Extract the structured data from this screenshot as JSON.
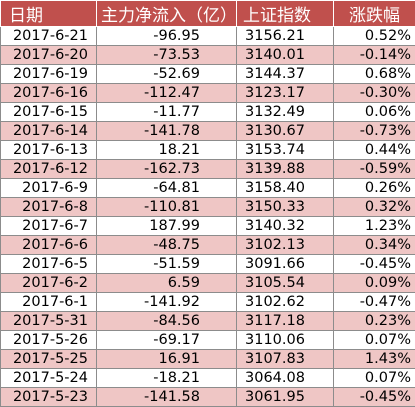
{
  "headers": {
    "date": "日期",
    "flow": "主力净流入（亿）",
    "index": "上证指数",
    "change": "涨跌幅"
  },
  "rows": [
    {
      "date": "2017-6-21",
      "flow": "-96.95",
      "index": "3156.21",
      "change": "0.52%"
    },
    {
      "date": "2017-6-20",
      "flow": "-73.53",
      "index": "3140.01",
      "change": "-0.14%"
    },
    {
      "date": "2017-6-19",
      "flow": "-52.69",
      "index": "3144.37",
      "change": "0.68%"
    },
    {
      "date": "2017-6-16",
      "flow": "-112.47",
      "index": "3123.17",
      "change": "-0.30%"
    },
    {
      "date": "2017-6-15",
      "flow": "-11.77",
      "index": "3132.49",
      "change": "0.06%"
    },
    {
      "date": "2017-6-14",
      "flow": "-141.78",
      "index": "3130.67",
      "change": "-0.73%"
    },
    {
      "date": "2017-6-13",
      "flow": "18.21",
      "index": "3153.74",
      "change": "0.44%"
    },
    {
      "date": "2017-6-12",
      "flow": "-162.73",
      "index": "3139.88",
      "change": "-0.59%"
    },
    {
      "date": "2017-6-9",
      "flow": "-64.81",
      "index": "3158.40",
      "change": "0.26%"
    },
    {
      "date": "2017-6-8",
      "flow": "-110.81",
      "index": "3150.33",
      "change": "0.32%"
    },
    {
      "date": "2017-6-7",
      "flow": "187.99",
      "index": "3140.32",
      "change": "1.23%"
    },
    {
      "date": "2017-6-6",
      "flow": "-48.75",
      "index": "3102.13",
      "change": "0.34%"
    },
    {
      "date": "2017-6-5",
      "flow": "-51.59",
      "index": "3091.66",
      "change": "-0.45%"
    },
    {
      "date": "2017-6-2",
      "flow": "6.59",
      "index": "3105.54",
      "change": "0.09%"
    },
    {
      "date": "2017-6-1",
      "flow": "-141.92",
      "index": "3102.62",
      "change": "-0.47%"
    },
    {
      "date": "2017-5-31",
      "flow": "-84.56",
      "index": "3117.18",
      "change": "0.23%"
    },
    {
      "date": "2017-5-26",
      "flow": "-69.17",
      "index": "3110.06",
      "change": "0.07%"
    },
    {
      "date": "2017-5-25",
      "flow": "16.91",
      "index": "3107.83",
      "change": "1.43%"
    },
    {
      "date": "2017-5-24",
      "flow": "-18.21",
      "index": "3064.08",
      "change": "0.07%"
    },
    {
      "date": "2017-5-23",
      "flow": "-141.58",
      "index": "3061.95",
      "change": "-0.45%"
    }
  ],
  "colors": {
    "header_bg": "#c0504d",
    "header_text": "#ffffff",
    "stripe": "#efc6c5"
  }
}
